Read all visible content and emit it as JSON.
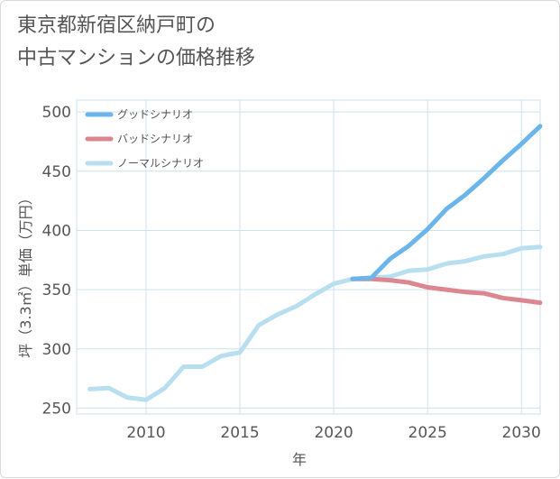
{
  "title_line1": "東京都新宿区納戸町の",
  "title_line2": "中古マンションの価格推移",
  "chart_data": {
    "type": "line",
    "xlabel": "年",
    "ylabel": "坪（3.3㎡）単価（万円）",
    "xlim": [
      2006.3,
      2031
    ],
    "ylim": [
      245,
      510
    ],
    "xticks": [
      2010,
      2015,
      2020,
      2025,
      2030
    ],
    "yticks": [
      250,
      300,
      350,
      400,
      450,
      500
    ],
    "grid": true,
    "legend_position": "top-left",
    "series": [
      {
        "name": "グッドシナリオ",
        "color": "#6bb5ea",
        "x": [
          2021,
          2022,
          2023,
          2024,
          2025,
          2026,
          2027,
          2028,
          2029,
          2030,
          2031
        ],
        "y": [
          359,
          360,
          376,
          387,
          401,
          418,
          430,
          444,
          459,
          473,
          488
        ]
      },
      {
        "name": "バッドシナリオ",
        "color": "#dc8690",
        "x": [
          2021,
          2022,
          2023,
          2024,
          2025,
          2026,
          2027,
          2028,
          2029,
          2030,
          2031
        ],
        "y": [
          359,
          359,
          358,
          356,
          352,
          350,
          348,
          347,
          343,
          341,
          339
        ]
      },
      {
        "name": "ノーマルシナリオ",
        "color": "#b8dff0",
        "x": [
          2007,
          2008,
          2009,
          2010,
          2011,
          2012,
          2013,
          2014,
          2015,
          2016,
          2017,
          2018,
          2019,
          2020,
          2021,
          2022,
          2023,
          2024,
          2025,
          2026,
          2027,
          2028,
          2029,
          2030,
          2031
        ],
        "y": [
          266,
          267,
          259,
          257,
          267,
          285,
          285,
          294,
          297,
          320,
          329,
          336,
          346,
          355,
          359,
          360,
          361,
          366,
          367,
          372,
          374,
          378,
          380,
          385,
          386
        ]
      }
    ]
  }
}
